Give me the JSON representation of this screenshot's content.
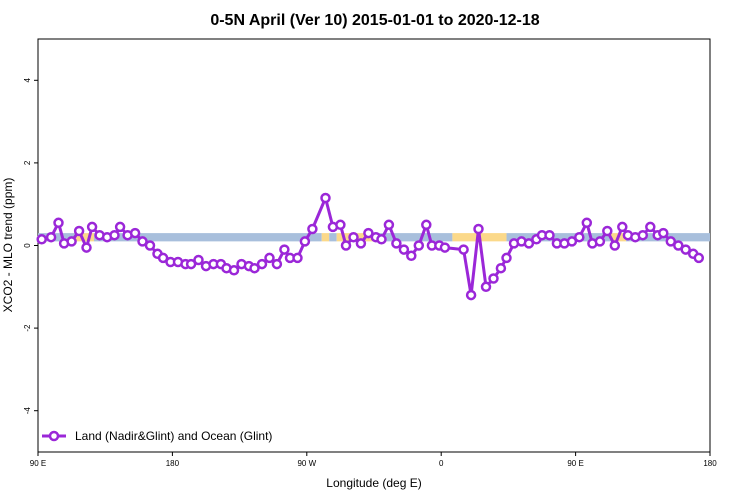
{
  "chart_data": {
    "type": "line",
    "title": "0-5N April (Ver 10)   2015-01-01 to 2020-12-18",
    "xlabel": "Longitude (deg E)",
    "ylabel": "XCO2 - MLO trend (ppm)",
    "xlim": [
      90,
      450
    ],
    "ylim": [
      -5,
      5
    ],
    "x_ticks": [
      {
        "value": 90,
        "label": "90 E"
      },
      {
        "value": 162,
        "label": "180"
      },
      {
        "value": 234,
        "label": "90 W"
      },
      {
        "value": 306,
        "label": "0"
      },
      {
        "value": 378,
        "label": "90 E"
      },
      {
        "value": 450,
        "label": "180"
      }
    ],
    "y_ticks": [
      {
        "value": -4,
        "label": "-4"
      },
      {
        "value": -2,
        "label": "-2"
      },
      {
        "value": 0,
        "label": "0"
      },
      {
        "value": 2,
        "label": "2"
      },
      {
        "value": 4,
        "label": "4"
      }
    ],
    "grid": false,
    "legend": {
      "position": "bottom-left",
      "entries": [
        {
          "name": "Land (Nadir&Glint) and Ocean (Glint)",
          "color": "#9b27d8"
        }
      ]
    },
    "band": {
      "y_range": [
        0.1,
        0.3
      ],
      "segments": [
        {
          "x": [
            90,
            110
          ],
          "surface": "ocean"
        },
        {
          "x": [
            110,
            120
          ],
          "surface": "land"
        },
        {
          "x": [
            120,
            242
          ],
          "surface": "ocean"
        },
        {
          "x": [
            242,
            246
          ],
          "surface": "land"
        },
        {
          "x": [
            246,
            250
          ],
          "surface": "ocean"
        },
        {
          "x": [
            250,
            270
          ],
          "surface": "land"
        },
        {
          "x": [
            270,
            312
          ],
          "surface": "ocean"
        },
        {
          "x": [
            312,
            341
          ],
          "surface": "land"
        },
        {
          "x": [
            341,
            397
          ],
          "surface": "ocean"
        },
        {
          "x": [
            397,
            405
          ],
          "surface": "land"
        },
        {
          "x": [
            405,
            450
          ],
          "surface": "ocean"
        }
      ]
    },
    "series": [
      {
        "name": "Land (Nadir&Glint) and Ocean (Glint)",
        "color": "#9b27d8",
        "points": [
          [
            92,
            0.15
          ],
          [
            97,
            0.2
          ],
          [
            101,
            0.55
          ],
          [
            104,
            0.05
          ],
          [
            108,
            0.1
          ],
          [
            112,
            0.35
          ],
          [
            116,
            -0.05
          ],
          [
            119,
            0.45
          ],
          [
            123,
            0.25
          ],
          [
            127,
            0.2
          ],
          [
            131,
            0.25
          ],
          [
            134,
            0.45
          ],
          [
            138,
            0.25
          ],
          [
            142,
            0.3
          ],
          [
            146,
            0.1
          ],
          [
            150,
            0.0
          ],
          [
            154,
            -0.2
          ],
          [
            157,
            -0.3
          ],
          [
            161,
            -0.4
          ],
          [
            165,
            -0.4
          ],
          [
            169,
            -0.45
          ],
          [
            172,
            -0.45
          ],
          [
            176,
            -0.35
          ],
          [
            180,
            -0.5
          ],
          [
            184,
            -0.45
          ],
          [
            188,
            -0.45
          ],
          [
            191,
            -0.55
          ],
          [
            195,
            -0.6
          ],
          [
            199,
            -0.45
          ],
          [
            203,
            -0.5
          ],
          [
            206,
            -0.55
          ],
          [
            210,
            -0.45
          ],
          [
            214,
            -0.3
          ],
          [
            218,
            -0.45
          ],
          [
            222,
            -0.1
          ],
          [
            225,
            -0.3
          ],
          [
            229,
            -0.3
          ],
          [
            233,
            0.1
          ],
          [
            237,
            0.4
          ],
          [
            244,
            1.15
          ],
          [
            248,
            0.45
          ],
          [
            252,
            0.5
          ],
          [
            255,
            0.0
          ],
          [
            259,
            0.2
          ],
          [
            263,
            0.05
          ],
          [
            267,
            0.3
          ],
          [
            271,
            0.2
          ],
          [
            274,
            0.15
          ],
          [
            278,
            0.5
          ],
          [
            282,
            0.05
          ],
          [
            286,
            -0.1
          ],
          [
            290,
            -0.25
          ],
          [
            294,
            0.0
          ],
          [
            298,
            0.5
          ],
          [
            301,
            0.0
          ],
          [
            305,
            0.0
          ],
          [
            308,
            -0.05
          ],
          [
            318,
            -0.1
          ],
          [
            322,
            -1.2
          ],
          [
            326,
            0.4
          ],
          [
            330,
            -1.0
          ],
          [
            334,
            -0.8
          ],
          [
            338,
            -0.55
          ],
          [
            341,
            -0.3
          ],
          [
            345,
            0.05
          ],
          [
            349,
            0.1
          ],
          [
            353,
            0.05
          ],
          [
            357,
            0.15
          ],
          [
            360,
            0.25
          ],
          [
            364,
            0.25
          ],
          [
            368,
            0.05
          ],
          [
            372,
            0.05
          ],
          [
            376,
            0.1
          ],
          [
            380,
            0.2
          ],
          [
            384,
            0.55
          ],
          [
            387,
            0.05
          ],
          [
            391,
            0.1
          ],
          [
            395,
            0.35
          ],
          [
            399,
            0.0
          ],
          [
            403,
            0.45
          ],
          [
            406,
            0.25
          ],
          [
            410,
            0.2
          ],
          [
            414,
            0.25
          ],
          [
            418,
            0.45
          ],
          [
            422,
            0.25
          ],
          [
            425,
            0.3
          ],
          [
            429,
            0.1
          ],
          [
            433,
            0.0
          ],
          [
            437,
            -0.1
          ],
          [
            441,
            -0.2
          ],
          [
            444,
            -0.3
          ]
        ]
      }
    ]
  },
  "colors": {
    "ocean_band": "#a8bfdc",
    "land_band": "#fbd98a",
    "series_line": "#9b27d8",
    "marker_fill": "#ffffff"
  }
}
